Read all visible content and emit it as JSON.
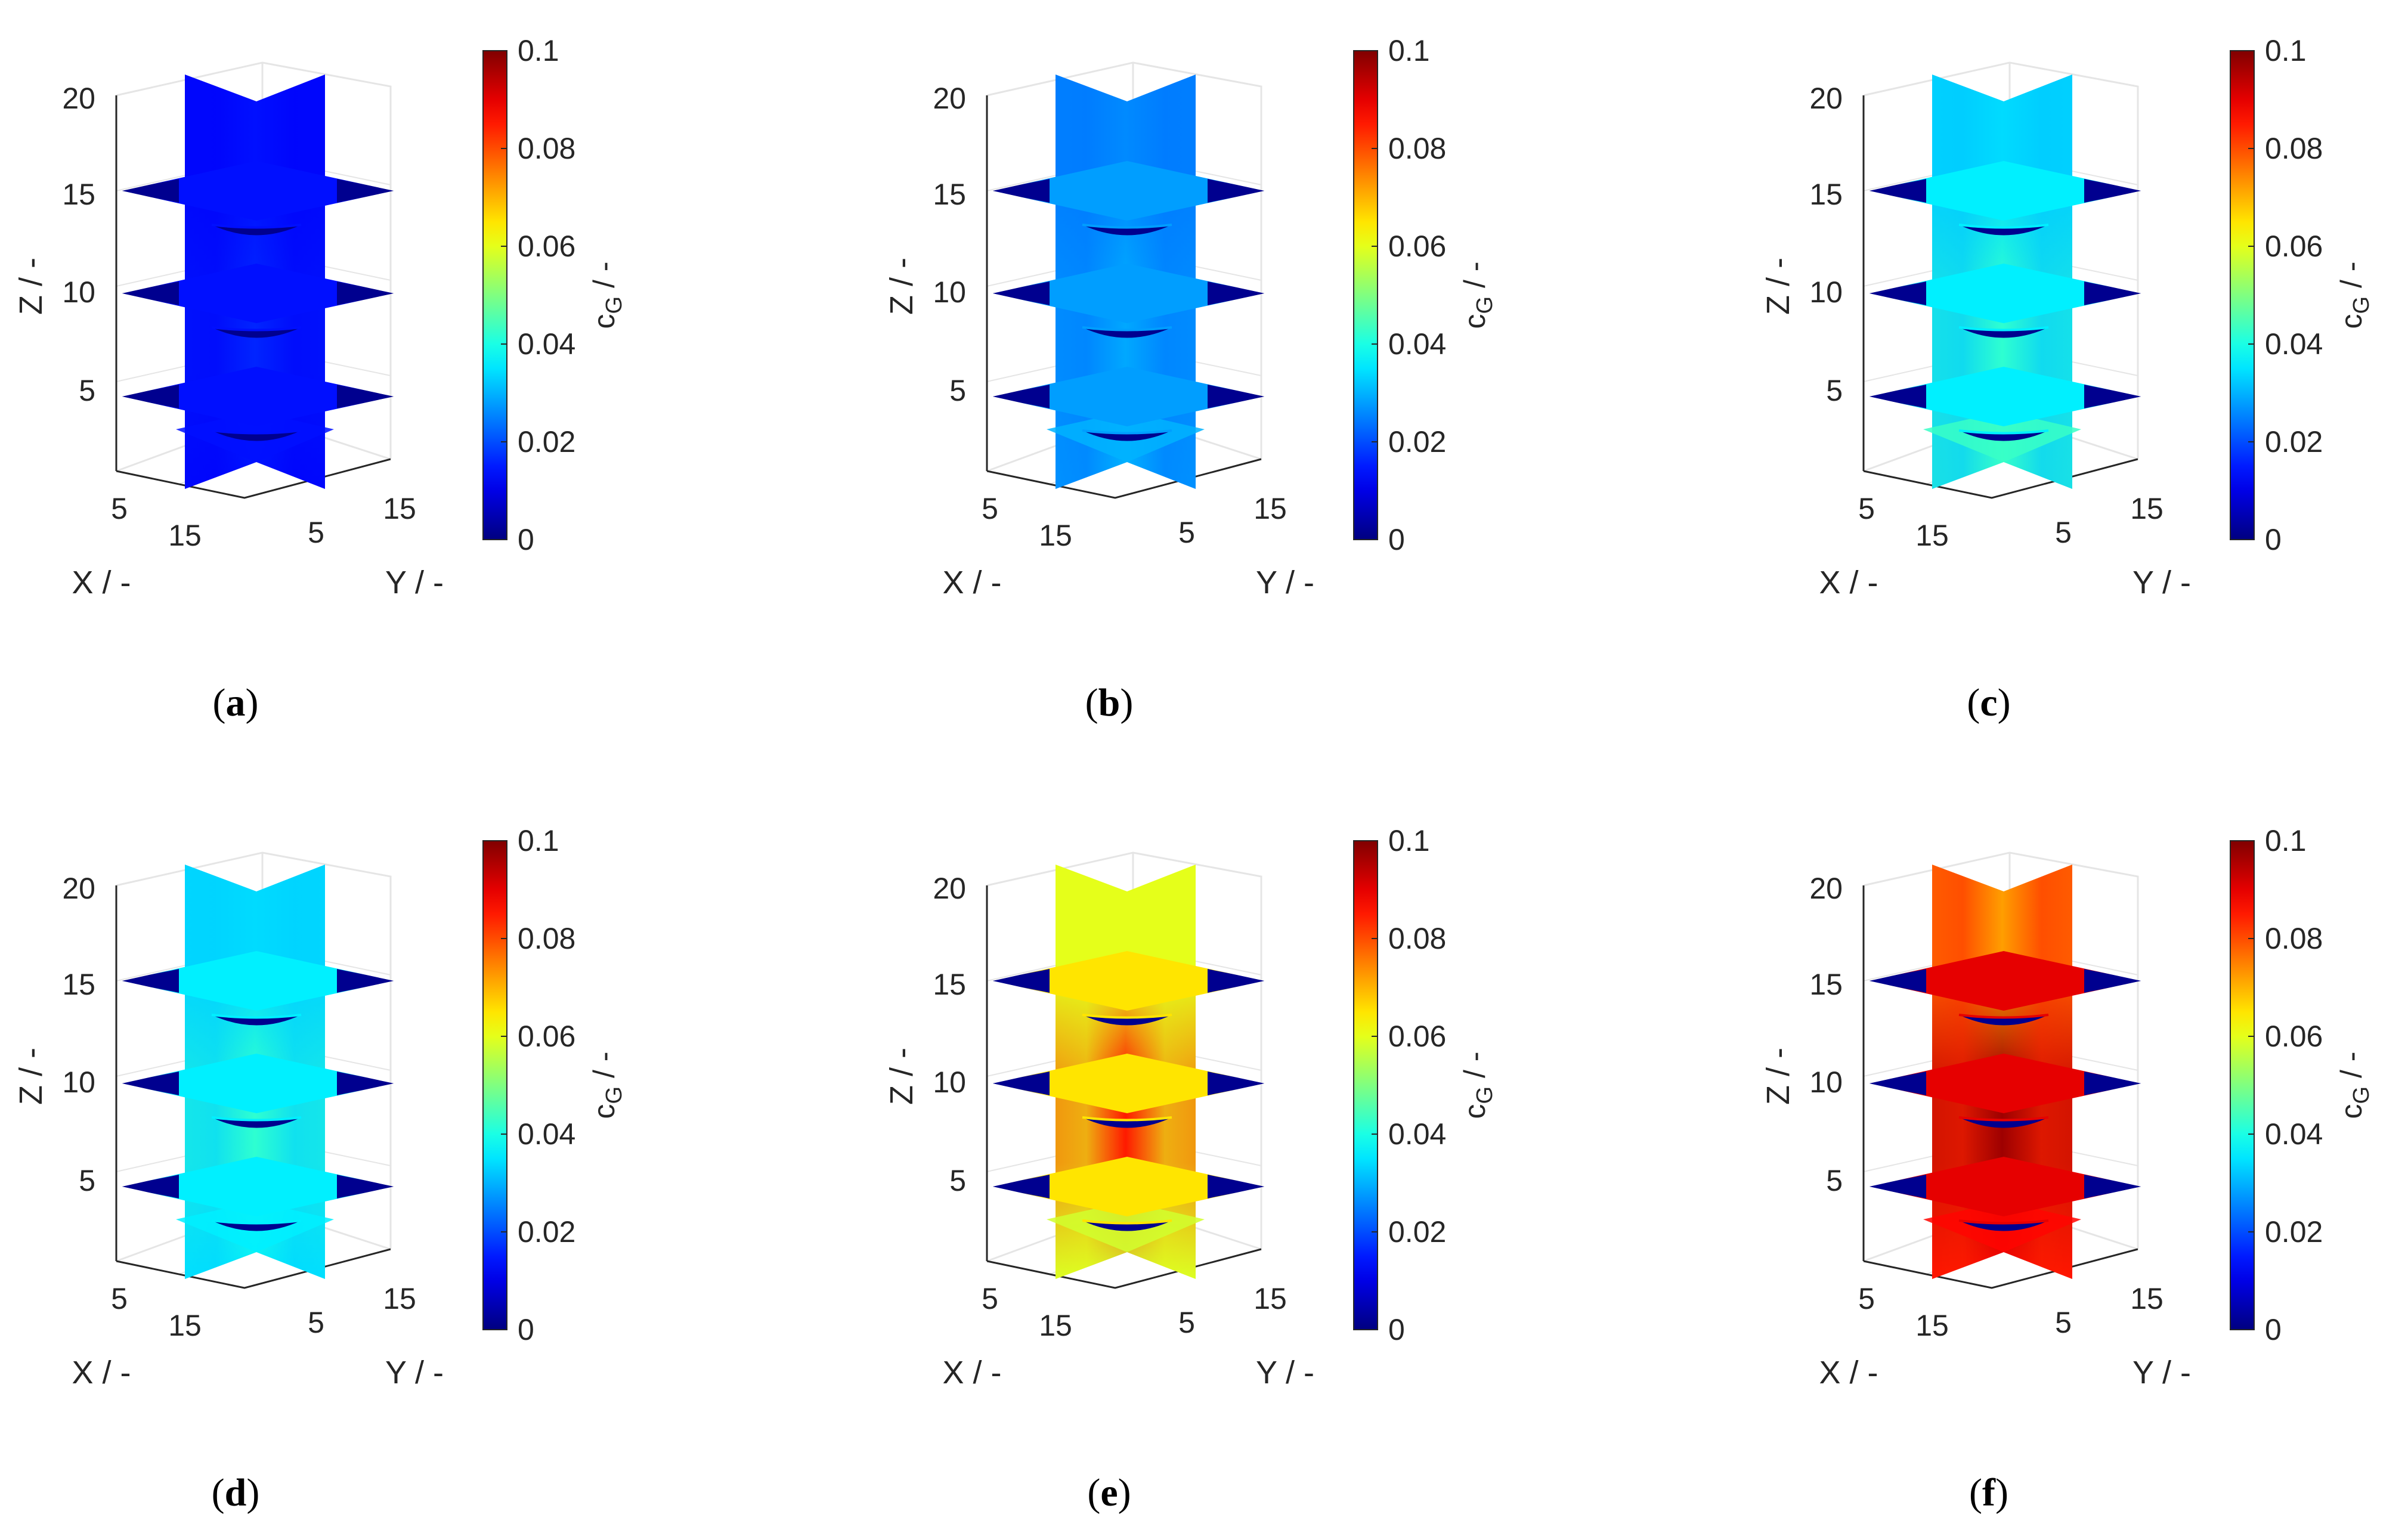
{
  "figure": {
    "panel_labels": [
      "(a)",
      "(b)",
      "(c)",
      "(d)",
      "(e)",
      "(f)"
    ]
  },
  "colors": {
    "colormap": "jet",
    "void": "#00008f",
    "axis": "#262626",
    "grid": "#e5e5e5"
  },
  "chart_data": [
    {
      "type": "heatmap",
      "panel": "(a)",
      "xlabel": "X / -",
      "ylabel": "Y / -",
      "zlabel": "Z / -",
      "x_ticks": [
        "5",
        "15"
      ],
      "y_ticks": [
        "5",
        "15"
      ],
      "z_ticks": [
        "5",
        "10",
        "15",
        "20"
      ],
      "colorbar": {
        "label": "cG / -",
        "label_main": "c",
        "label_sub": "G",
        "label_tail": " / -",
        "range": [
          0,
          0.1
        ],
        "ticks": [
          "0",
          "0.02",
          "0.04",
          "0.06",
          "0.08",
          "0.1"
        ]
      },
      "field": {
        "base": 0.014,
        "center": 0.016,
        "top": 0.014,
        "edge": 0.012,
        "shelf_inner": 0.014
      }
    },
    {
      "type": "heatmap",
      "panel": "(b)",
      "xlabel": "X / -",
      "ylabel": "Y / -",
      "zlabel": "Z / -",
      "x_ticks": [
        "5",
        "15"
      ],
      "y_ticks": [
        "5",
        "15"
      ],
      "z_ticks": [
        "5",
        "10",
        "15",
        "20"
      ],
      "colorbar": {
        "label": "cG / -",
        "label_main": "c",
        "label_sub": "G",
        "label_tail": " / -",
        "range": [
          0,
          0.1
        ],
        "ticks": [
          "0",
          "0.02",
          "0.04",
          "0.06",
          "0.08",
          "0.1"
        ]
      },
      "field": {
        "base": 0.03,
        "center": 0.029,
        "top": 0.026,
        "edge": 0.024,
        "shelf_inner": 0.028
      }
    },
    {
      "type": "heatmap",
      "panel": "(c)",
      "xlabel": "X / -",
      "ylabel": "Y / -",
      "zlabel": "Z / -",
      "x_ticks": [
        "5",
        "15"
      ],
      "y_ticks": [
        "5",
        "15"
      ],
      "z_ticks": [
        "5",
        "10",
        "15",
        "20"
      ],
      "colorbar": {
        "label": "cG / -",
        "label_main": "c",
        "label_sub": "G",
        "label_tail": " / -",
        "range": [
          0,
          0.1
        ],
        "ticks": [
          "0",
          "0.02",
          "0.04",
          "0.06",
          "0.08",
          "0.1"
        ]
      },
      "field": {
        "base": 0.043,
        "center": 0.042,
        "top": 0.034,
        "edge": 0.032,
        "shelf_inner": 0.036
      }
    },
    {
      "type": "heatmap",
      "panel": "(d)",
      "xlabel": "X / -",
      "ylabel": "Y / -",
      "zlabel": "Z / -",
      "x_ticks": [
        "5",
        "15"
      ],
      "y_ticks": [
        "5",
        "15"
      ],
      "z_ticks": [
        "5",
        "10",
        "15",
        "20"
      ],
      "colorbar": {
        "label": "cG / -",
        "label_main": "c",
        "label_sub": "G",
        "label_tail": " / -",
        "range": [
          0,
          0.1
        ],
        "ticks": [
          "0",
          "0.02",
          "0.04",
          "0.06",
          "0.08",
          "0.1"
        ]
      },
      "field": {
        "base": 0.036,
        "center": 0.042,
        "top": 0.034,
        "edge": 0.033,
        "shelf_inner": 0.036
      }
    },
    {
      "type": "heatmap",
      "panel": "(e)",
      "xlabel": "X / -",
      "ylabel": "Y / -",
      "zlabel": "Z / -",
      "x_ticks": [
        "5",
        "15"
      ],
      "y_ticks": [
        "5",
        "15"
      ],
      "z_ticks": [
        "5",
        "10",
        "15",
        "20"
      ],
      "colorbar": {
        "label": "cG / -",
        "label_main": "c",
        "label_sub": "G",
        "label_tail": " / -",
        "range": [
          0,
          0.1
        ],
        "ticks": [
          "0",
          "0.02",
          "0.04",
          "0.06",
          "0.08",
          "0.1"
        ]
      },
      "field": {
        "base": 0.058,
        "center": 0.085,
        "top": 0.06,
        "edge": 0.06,
        "shelf_inner": 0.065
      }
    },
    {
      "type": "heatmap",
      "panel": "(f)",
      "xlabel": "X / -",
      "ylabel": "Y / -",
      "zlabel": "Z / -",
      "x_ticks": [
        "5",
        "15"
      ],
      "y_ticks": [
        "5",
        "15"
      ],
      "z_ticks": [
        "5",
        "10",
        "15",
        "20"
      ],
      "colorbar": {
        "label": "cG / -",
        "label_main": "c",
        "label_sub": "G",
        "label_tail": " / -",
        "range": [
          0,
          0.1
        ],
        "ticks": [
          "0",
          "0.02",
          "0.04",
          "0.06",
          "0.08",
          "0.1"
        ]
      },
      "field": {
        "base": 0.087,
        "center": 0.097,
        "top": 0.072,
        "edge": 0.084,
        "shelf_inner": 0.09
      }
    }
  ]
}
